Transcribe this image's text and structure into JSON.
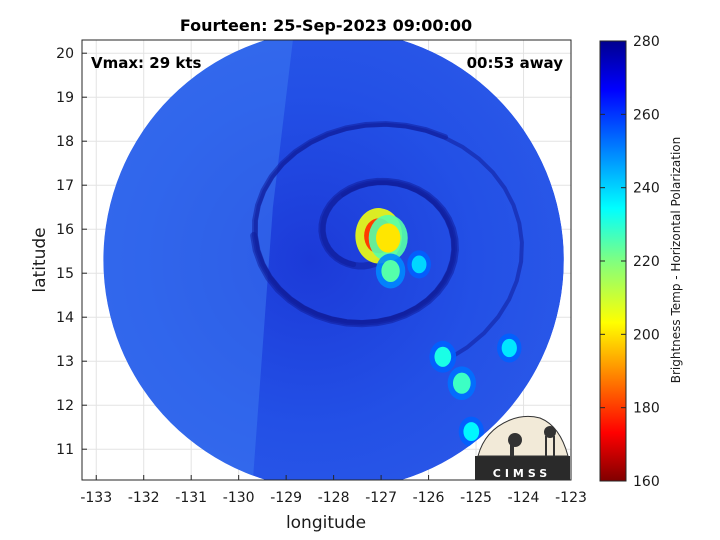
{
  "title": "Fourteen: 25-Sep-2023 09:00:00",
  "annotations": {
    "vmax": "Vmax: 29 kts",
    "away": "00:53 away"
  },
  "axes": {
    "xlabel": "longitude",
    "ylabel": "latitude",
    "xticks": [
      -133,
      -132,
      -131,
      -130,
      -129,
      -128,
      -127,
      -126,
      -125,
      -124,
      -123
    ],
    "yticks": [
      11,
      12,
      13,
      14,
      15,
      16,
      17,
      18,
      19,
      20
    ],
    "xlim": [
      -133.3,
      -123
    ],
    "ylim": [
      10.3,
      20.3
    ],
    "grid": true
  },
  "colorbar": {
    "label": "Brightness Temp - Horizontal Polarization",
    "ticks": [
      160,
      180,
      200,
      220,
      240,
      260,
      280
    ],
    "range": [
      160,
      280
    ],
    "colormap": "jet"
  },
  "swath": {
    "center_lon": -128.0,
    "center_lat": 15.3,
    "radius_deg": 5.0
  },
  "storm": {
    "center_lon": -127.2,
    "center_lat": 15.8
  },
  "cold_spots": [
    {
      "lon": -127.05,
      "lat": 15.85,
      "tb": 180
    },
    {
      "lon": -126.85,
      "lat": 15.8,
      "tb": 200
    },
    {
      "lon": -126.8,
      "lat": 15.05,
      "tb": 225
    },
    {
      "lon": -125.3,
      "lat": 12.5,
      "tb": 228
    },
    {
      "lon": -125.7,
      "lat": 13.1,
      "tb": 232
    },
    {
      "lon": -124.3,
      "lat": 13.3,
      "tb": 238
    },
    {
      "lon": -125.1,
      "lat": 11.4,
      "tb": 236
    },
    {
      "lon": -126.2,
      "lat": 15.2,
      "tb": 240
    }
  ],
  "logo": {
    "text": "CIMSS"
  }
}
